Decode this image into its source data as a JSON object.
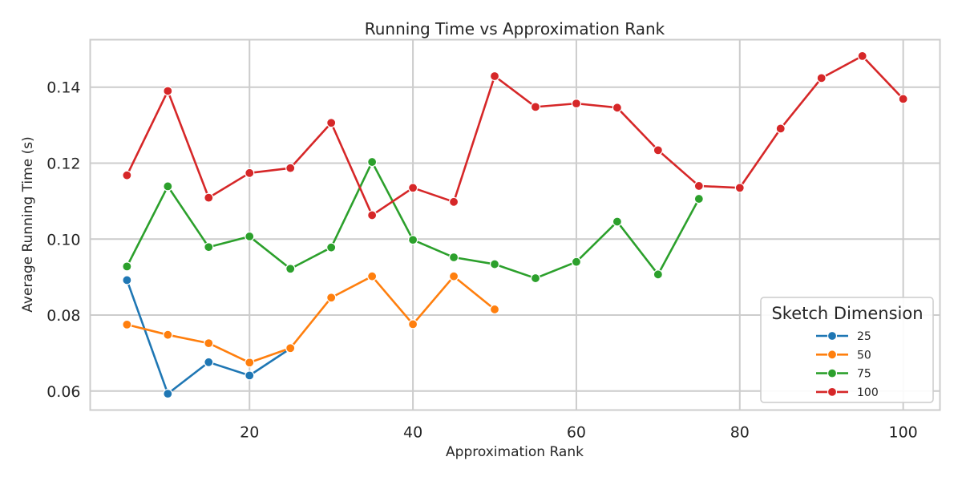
{
  "chart_data": {
    "type": "line",
    "title": "Running Time vs Approximation Rank",
    "xlabel": "Approximation Rank",
    "ylabel": "Average Running Time (s)",
    "xlim": [
      0.5,
      104.5
    ],
    "ylim": [
      0.055,
      0.1525
    ],
    "xticks": [
      20,
      40,
      60,
      80,
      100
    ],
    "yticks": [
      0.06,
      0.08,
      0.1,
      0.12,
      0.14
    ],
    "xtick_labels": [
      "20",
      "40",
      "60",
      "80",
      "100"
    ],
    "ytick_labels": [
      "0.06",
      "0.08",
      "0.10",
      "0.12",
      "0.14"
    ],
    "grid": true,
    "legend": {
      "title": "Sketch Dimension",
      "placement": "lower-right"
    },
    "series": [
      {
        "name": "25",
        "color": "#1f77b4",
        "x": [
          5,
          10,
          15,
          20,
          25
        ],
        "y": [
          0.0892,
          0.0593,
          0.0676,
          0.0641,
          0.0712
        ]
      },
      {
        "name": "50",
        "color": "#ff7f0e",
        "x": [
          5,
          10,
          15,
          20,
          25,
          30,
          35,
          40,
          45,
          50
        ],
        "y": [
          0.0775,
          0.0748,
          0.0726,
          0.0675,
          0.0713,
          0.0846,
          0.0902,
          0.0776,
          0.0902,
          0.0815
        ]
      },
      {
        "name": "75",
        "color": "#2ca02c",
        "x": [
          5,
          10,
          15,
          20,
          25,
          30,
          35,
          40,
          45,
          50,
          55,
          60,
          65,
          70,
          75
        ],
        "y": [
          0.0928,
          0.1139,
          0.0979,
          0.1007,
          0.0922,
          0.0978,
          0.1203,
          0.0998,
          0.0952,
          0.0934,
          0.0897,
          0.094,
          0.1046,
          0.0907,
          0.1106
        ]
      },
      {
        "name": "100",
        "color": "#d62728",
        "x": [
          5,
          10,
          15,
          20,
          25,
          30,
          35,
          40,
          45,
          50,
          55,
          60,
          65,
          70,
          75,
          80,
          85,
          90,
          95,
          100
        ],
        "y": [
          0.1168,
          0.139,
          0.1109,
          0.1174,
          0.1187,
          0.1306,
          0.1063,
          0.1135,
          0.1098,
          0.1429,
          0.1348,
          0.1357,
          0.1346,
          0.1234,
          0.114,
          0.1135,
          0.1291,
          0.1424,
          0.1482,
          0.1369
        ]
      }
    ]
  }
}
